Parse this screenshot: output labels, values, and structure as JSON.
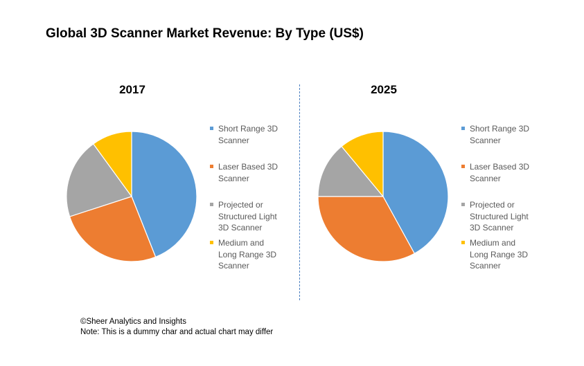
{
  "title": "Global 3D Scanner Market Revenue: By Type (US$)",
  "chart_data": [
    {
      "type": "pie",
      "title": "2017",
      "categories": [
        "Short Range 3D Scanner",
        "Laser Based 3D Scanner",
        "Projected or Structured Light 3D Scanner",
        "Medium and Long Range 3D Scanner"
      ],
      "values": [
        44,
        26,
        20,
        10
      ],
      "colors": [
        "#5b9bd5",
        "#ed7d31",
        "#a5a5a5",
        "#ffc000"
      ],
      "legend": "right"
    },
    {
      "type": "pie",
      "title": "2025",
      "categories": [
        "Short Range 3D Scanner",
        "Laser Based 3D Scanner",
        "Projected or Structured Light 3D Scanner",
        "Medium and Long Range 3D Scanner"
      ],
      "values": [
        42,
        33,
        14,
        11
      ],
      "colors": [
        "#5b9bd5",
        "#ed7d31",
        "#a5a5a5",
        "#ffc000"
      ],
      "legend": "right"
    }
  ],
  "legend_labels": [
    "Short Range  3D Scanner",
    "Laser Based 3D Scanner",
    "Projected or Structured Light 3D Scanner",
    "Medium and Long Range  3D Scanner"
  ],
  "footer": {
    "line1": "©Sheer Analytics and Insights",
    "line2": "Note: This is a dummy char and actual chart may differ"
  }
}
